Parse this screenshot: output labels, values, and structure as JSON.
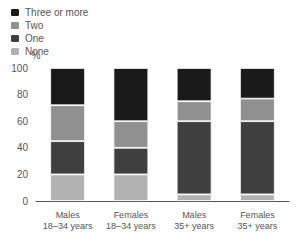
{
  "chart_data": {
    "type": "bar",
    "stacked": true,
    "categories": [
      "Males\n18–34 years",
      "Females\n18–34 years",
      "Males\n35+ years",
      "Females\n35+ years"
    ],
    "series": [
      {
        "name": "None",
        "color": "#b2b2b2",
        "values": [
          20,
          20,
          5,
          5
        ]
      },
      {
        "name": "One",
        "color": "#404040",
        "values": [
          25,
          20,
          55,
          55
        ]
      },
      {
        "name": "Two",
        "color": "#909090",
        "values": [
          27,
          20,
          15,
          17
        ]
      },
      {
        "name": "Three or more",
        "color": "#1a1a1a",
        "values": [
          28,
          40,
          25,
          23
        ]
      }
    ],
    "ylabel": "%",
    "ylim": [
      0,
      100
    ],
    "yticks": [
      0,
      20,
      40,
      60,
      80,
      100
    ],
    "grid": false,
    "legend": "upper left"
  }
}
